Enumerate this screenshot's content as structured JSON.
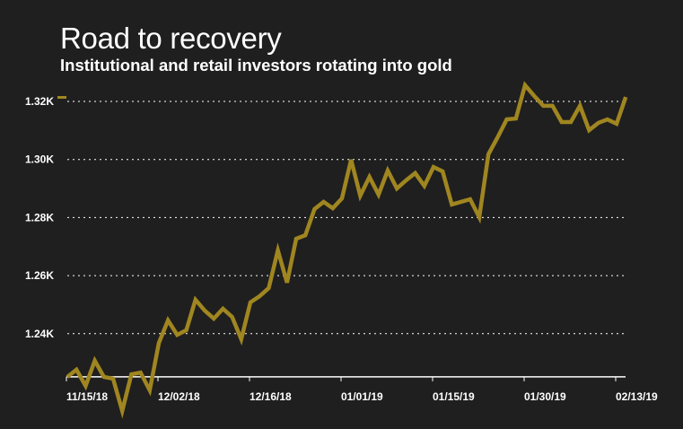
{
  "chart_data": {
    "type": "line",
    "title": "Road to recovery",
    "subtitle": "Institutional and retail investors rotating into gold",
    "xlabel": "",
    "ylabel": "",
    "x_tick_labels": [
      "11/15/18",
      "12/02/18",
      "12/16/18",
      "01/01/19",
      "01/15/19",
      "01/30/19",
      "02/13/19"
    ],
    "x_tick_indices": [
      0,
      10,
      20,
      30,
      40,
      50,
      60
    ],
    "y_ticks": [
      1240,
      1260,
      1280,
      1300,
      1320
    ],
    "y_tick_labels": [
      "1.24K",
      "1.26K",
      "1.28K",
      "1.30K",
      "1.32K"
    ],
    "y_baseline": 1225,
    "grid": "horizontal dotted",
    "legend": "marker beside top y tick",
    "colors": {
      "background": "#1f1f1f",
      "line": "#a08620",
      "text": "#ffffff"
    },
    "series": [
      {
        "values": [
          1225.1,
          1227.6,
          1222,
          1230.7,
          1225.1,
          1224.5,
          1213.4,
          1226,
          1226.6,
          1220.5,
          1236.8,
          1244.6,
          1239.6,
          1241.2,
          1251.7,
          1248,
          1245.2,
          1248.6,
          1245.8,
          1238.1,
          1250.8,
          1252.9,
          1255.7,
          1268.7,
          1257.6,
          1272.7,
          1273.9,
          1282.9,
          1285.4,
          1283.2,
          1286.6,
          1299.9,
          1287.5,
          1294,
          1287.9,
          1296.2,
          1290,
          1292.8,
          1295.3,
          1290.9,
          1297.4,
          1295.9,
          1284.5,
          1285.4,
          1286.3,
          1280.1,
          1301.8,
          1307.6,
          1313.8,
          1314.1,
          1325.6,
          1321.9,
          1318.5,
          1318.5,
          1312.9,
          1312.9,
          1318.5,
          1310.1,
          1312.6,
          1313.8,
          1312.3,
          1321.5
        ]
      }
    ]
  }
}
